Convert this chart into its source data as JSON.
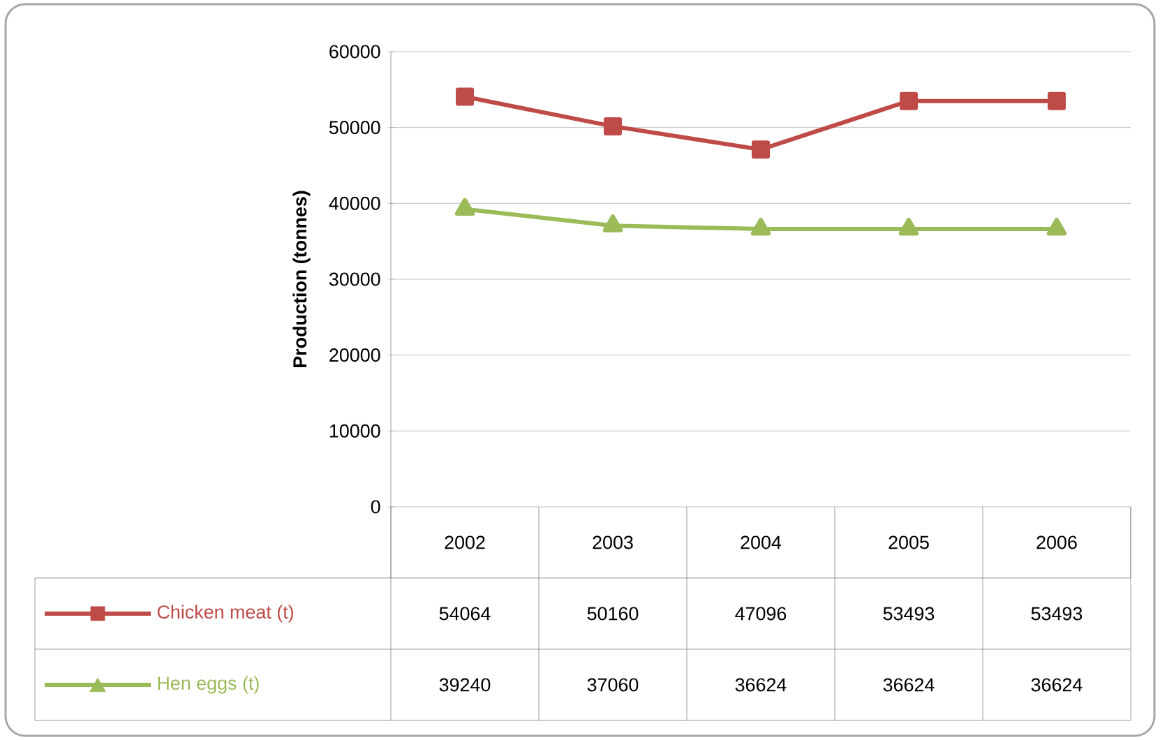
{
  "chart_data": {
    "type": "line",
    "ylabel": "Production (tonnes)",
    "categories": [
      "2002",
      "2003",
      "2004",
      "2005",
      "2006"
    ],
    "series": [
      {
        "name": "Chicken meat (t)",
        "color": "#be4b48",
        "marker": "square",
        "line_style": "solid",
        "values": [
          54064,
          50160,
          47096,
          53493,
          53493
        ]
      },
      {
        "name": "Hen eggs (t)",
        "color": "#9bbb59",
        "marker": "triangle",
        "line_style": "solid",
        "values": [
          39240,
          37060,
          36624,
          36624,
          36624
        ]
      }
    ],
    "ylim": [
      0,
      60000
    ],
    "yticks": [
      0,
      10000,
      20000,
      30000,
      40000,
      50000,
      60000
    ],
    "grid": "y",
    "legend": "bottom",
    "data_labels": true
  }
}
